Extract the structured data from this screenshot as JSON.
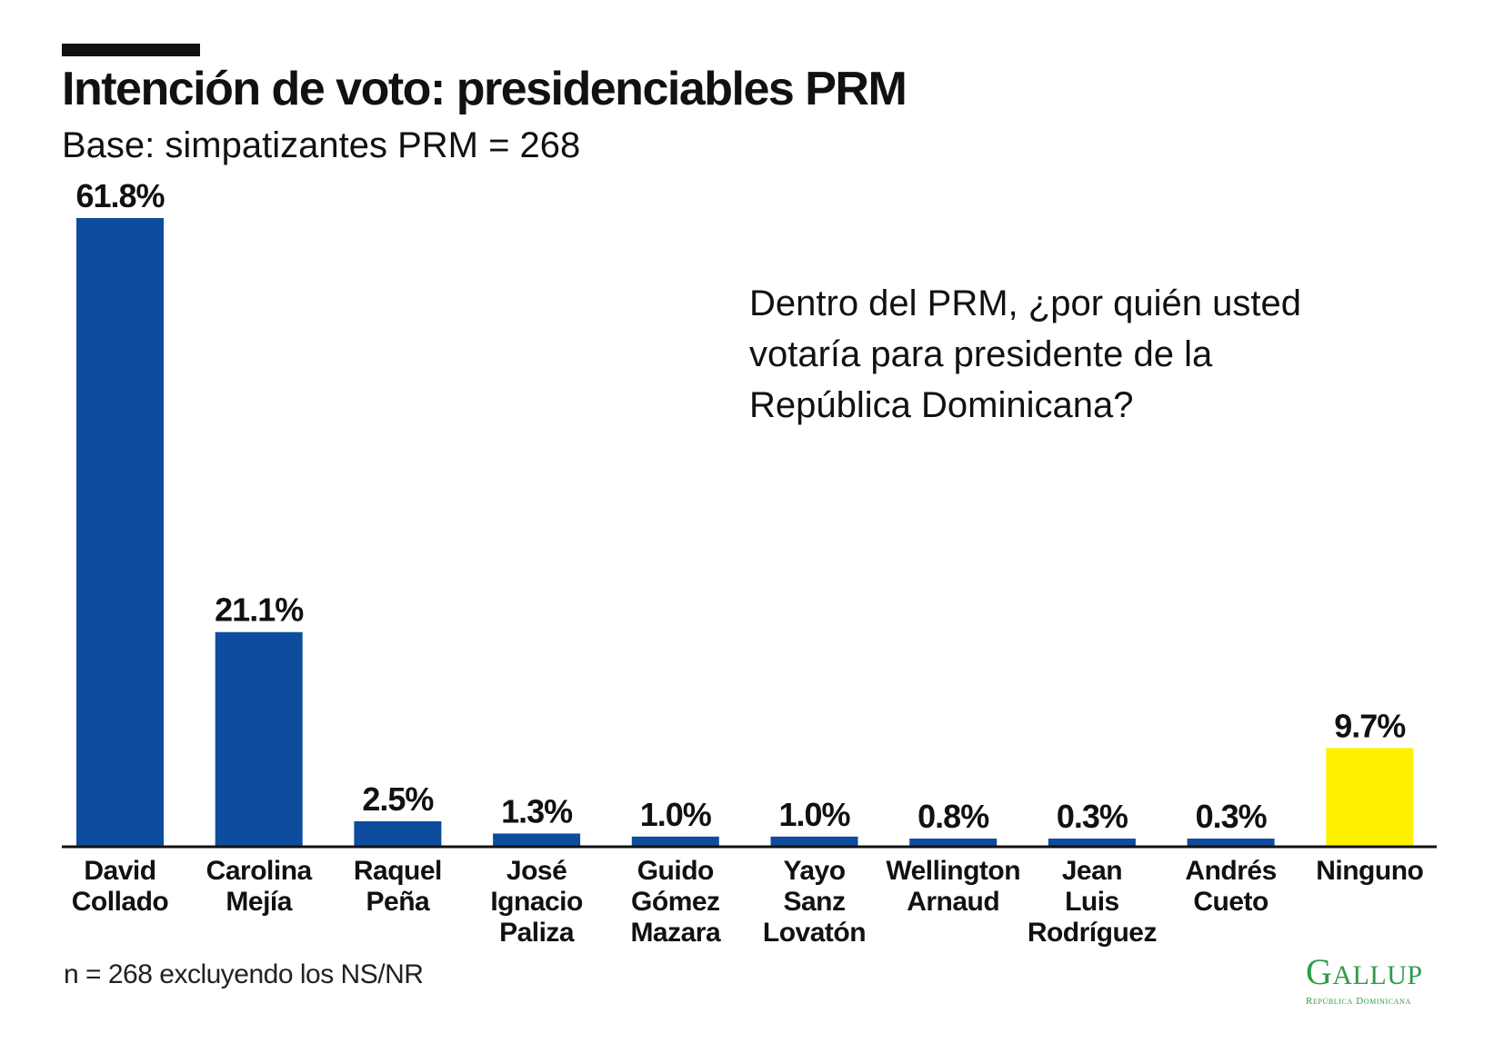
{
  "header": {
    "title": "Intención de voto: presidenciables PRM",
    "subtitle": "Base: simpatizantes PRM = 268"
  },
  "question": {
    "lines": [
      "Dentro del PRM, ¿por quién usted",
      "votaría para presidente de la",
      "República Dominicana?"
    ]
  },
  "footnote": "n = 268 excluyendo los NS/NR",
  "logo": {
    "word": "Gallup",
    "sub": "República Dominicana"
  },
  "colors": {
    "bar": "#0e4c9d",
    "highlight": "#fff200",
    "axis": "#111111",
    "text": "#111111",
    "logo": "#2e9b48"
  },
  "chart_data": {
    "type": "bar",
    "categories": [
      [
        "David",
        "Collado"
      ],
      [
        "Carolina",
        "Mejía"
      ],
      [
        "Raquel",
        "Peña"
      ],
      [
        "José",
        "Ignacio",
        "Paliza"
      ],
      [
        "Guido",
        "Gómez",
        "Mazara"
      ],
      [
        "Yayo",
        "Sanz",
        "Lovatón"
      ],
      [
        "Wellington",
        "Arnaud"
      ],
      [
        "Jean",
        "Luis",
        "Rodríguez"
      ],
      [
        "Andrés",
        "Cueto"
      ],
      [
        "Ninguno"
      ]
    ],
    "values": [
      61.8,
      21.1,
      2.5,
      1.3,
      1.0,
      1.0,
      0.8,
      0.3,
      0.3,
      9.7
    ],
    "labels": [
      "61.8%",
      "21.1%",
      "2.5%",
      "1.3%",
      "1.0%",
      "1.0%",
      "0.8%",
      "0.3%",
      "0.3%",
      "9.7%"
    ],
    "highlight_index": 9,
    "ylim": [
      0,
      61.8
    ],
    "grid": false,
    "legend": "none",
    "xlabel": "",
    "ylabel": ""
  }
}
